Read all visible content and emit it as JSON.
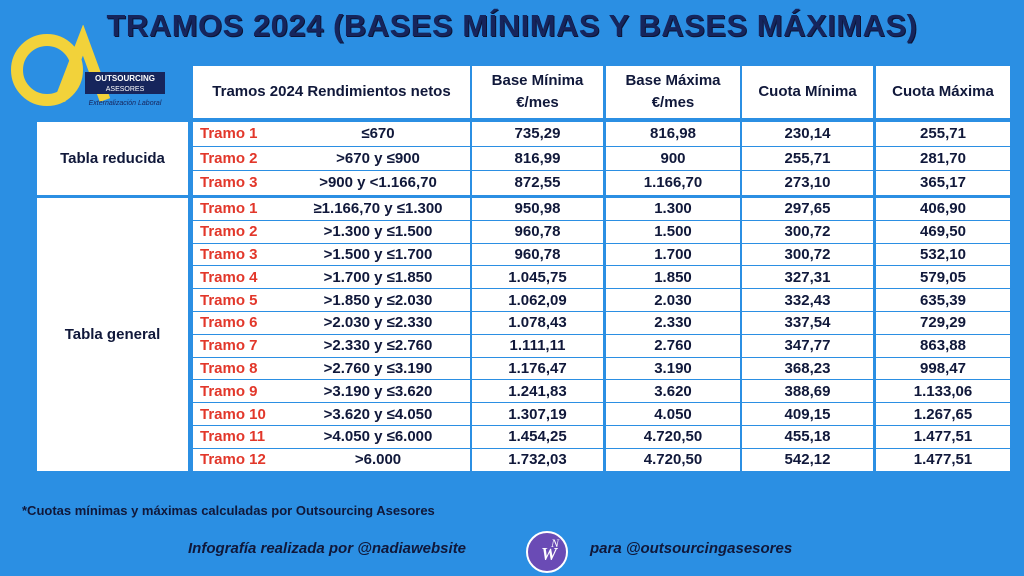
{
  "header": {
    "title": "TRAMOS 2024 (BASES MÍNIMAS Y BASES MÁXIMAS)"
  },
  "logo": {
    "name": "OUTSOURCING",
    "sub": "ASESORES",
    "tagline": "Externalización Laboral"
  },
  "table": {
    "columns": [
      "Tramos 2024 Rendimientos netos",
      "Base Mínima €/mes",
      "Base Máxima €/mes",
      "Cuota Mínima",
      "Cuota Máxima"
    ],
    "groups": [
      {
        "label": "Tabla reducida",
        "rows": [
          [
            "Tramo 1",
            "≤670",
            "735,29",
            "816,98",
            "230,14",
            "255,71"
          ],
          [
            "Tramo 2",
            ">670 y ≤900",
            "816,99",
            "900",
            "255,71",
            "281,70"
          ],
          [
            "Tramo 3",
            ">900 y <1.166,70",
            "872,55",
            "1.166,70",
            "273,10",
            "365,17"
          ]
        ]
      },
      {
        "label": "Tabla general",
        "rows": [
          [
            "Tramo 1",
            "≥1.166,70 y ≤1.300",
            "950,98",
            "1.300",
            "297,65",
            "406,90"
          ],
          [
            "Tramo 2",
            ">1.300 y ≤1.500",
            "960,78",
            "1.500",
            "300,72",
            "469,50"
          ],
          [
            "Tramo 3",
            ">1.500 y ≤1.700",
            "960,78",
            "1.700",
            "300,72",
            "532,10"
          ],
          [
            "Tramo 4",
            ">1.700 y ≤1.850",
            "1.045,75",
            "1.850",
            "327,31",
            "579,05"
          ],
          [
            "Tramo 5",
            ">1.850 y ≤2.030",
            "1.062,09",
            "2.030",
            "332,43",
            "635,39"
          ],
          [
            "Tramo 6",
            ">2.030 y ≤2.330",
            "1.078,43",
            "2.330",
            "337,54",
            "729,29"
          ],
          [
            "Tramo 7",
            ">2.330 y ≤2.760",
            "1.111,11",
            "2.760",
            "347,77",
            "863,88"
          ],
          [
            "Tramo 8",
            ">2.760 y ≤3.190",
            "1.176,47",
            "3.190",
            "368,23",
            "998,47"
          ],
          [
            "Tramo 9",
            ">3.190 y ≤3.620",
            "1.241,83",
            "3.620",
            "388,69",
            "1.133,06"
          ],
          [
            "Tramo 10",
            ">3.620 y ≤4.050",
            "1.307,19",
            "4.050",
            "409,15",
            "1.267,65"
          ],
          [
            "Tramo 11",
            ">4.050 y ≤6.000",
            "1.454,25",
            "4.720,50",
            "455,18",
            "1.477,51"
          ],
          [
            "Tramo 12",
            ">6.000",
            "1.732,03",
            "4.720,50",
            "542,12",
            "1.477,51"
          ]
        ]
      }
    ]
  },
  "footnote": "*Cuotas mínimas y máximas calculadas por Outsourcing Asesores",
  "credit": {
    "left": "Infografía realizada por @nadiawebsite",
    "right": "para @outsourcingasesores",
    "badge_w": "W",
    "badge_n": "N"
  }
}
